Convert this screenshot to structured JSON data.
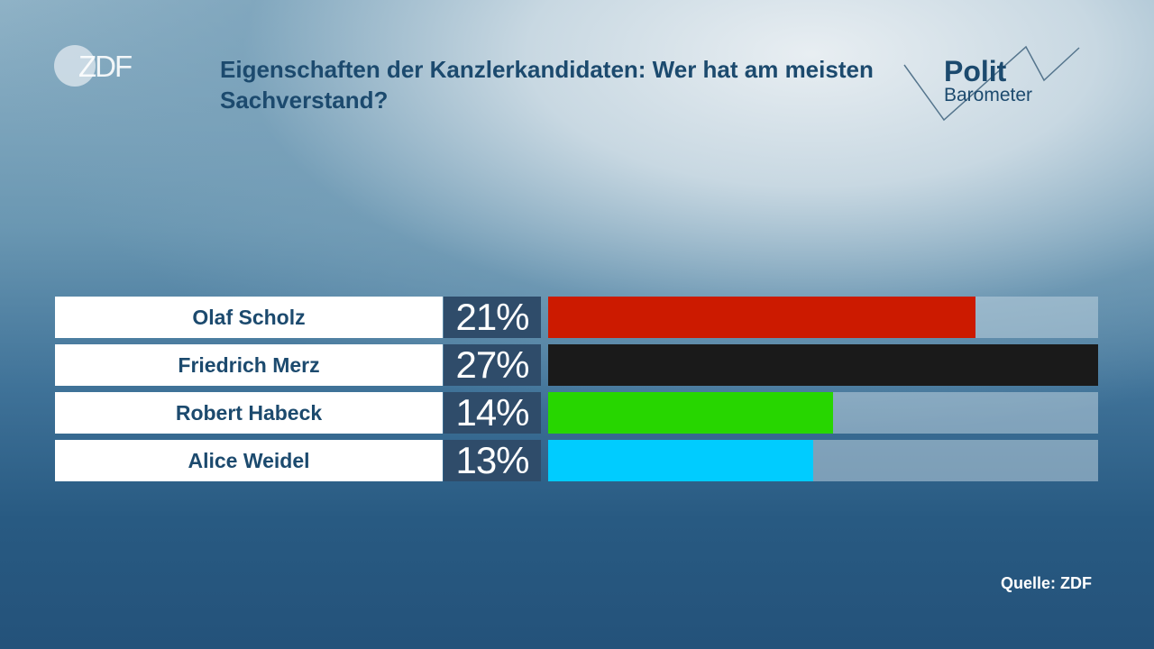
{
  "logo_text": "ZDF",
  "brand_text": {
    "line1": "Polit",
    "line2": "Barometer"
  },
  "chart_data": {
    "type": "bar",
    "title": "Eigenschaften der Kanzlerkandidaten: Wer hat am meisten Sachverstand?",
    "categories": [
      "Olaf Scholz",
      "Friedrich Merz",
      "Robert Habeck",
      "Alice Weidel"
    ],
    "values": [
      21,
      27,
      14,
      13
    ],
    "labels": [
      "21%",
      "27%",
      "14%",
      "13%"
    ],
    "colors": [
      "#cc1a00",
      "#1a1a1a",
      "#27d600",
      "#00ccff"
    ],
    "xlim": [
      0,
      27
    ],
    "unit": "%"
  },
  "source": "Quelle: ZDF"
}
